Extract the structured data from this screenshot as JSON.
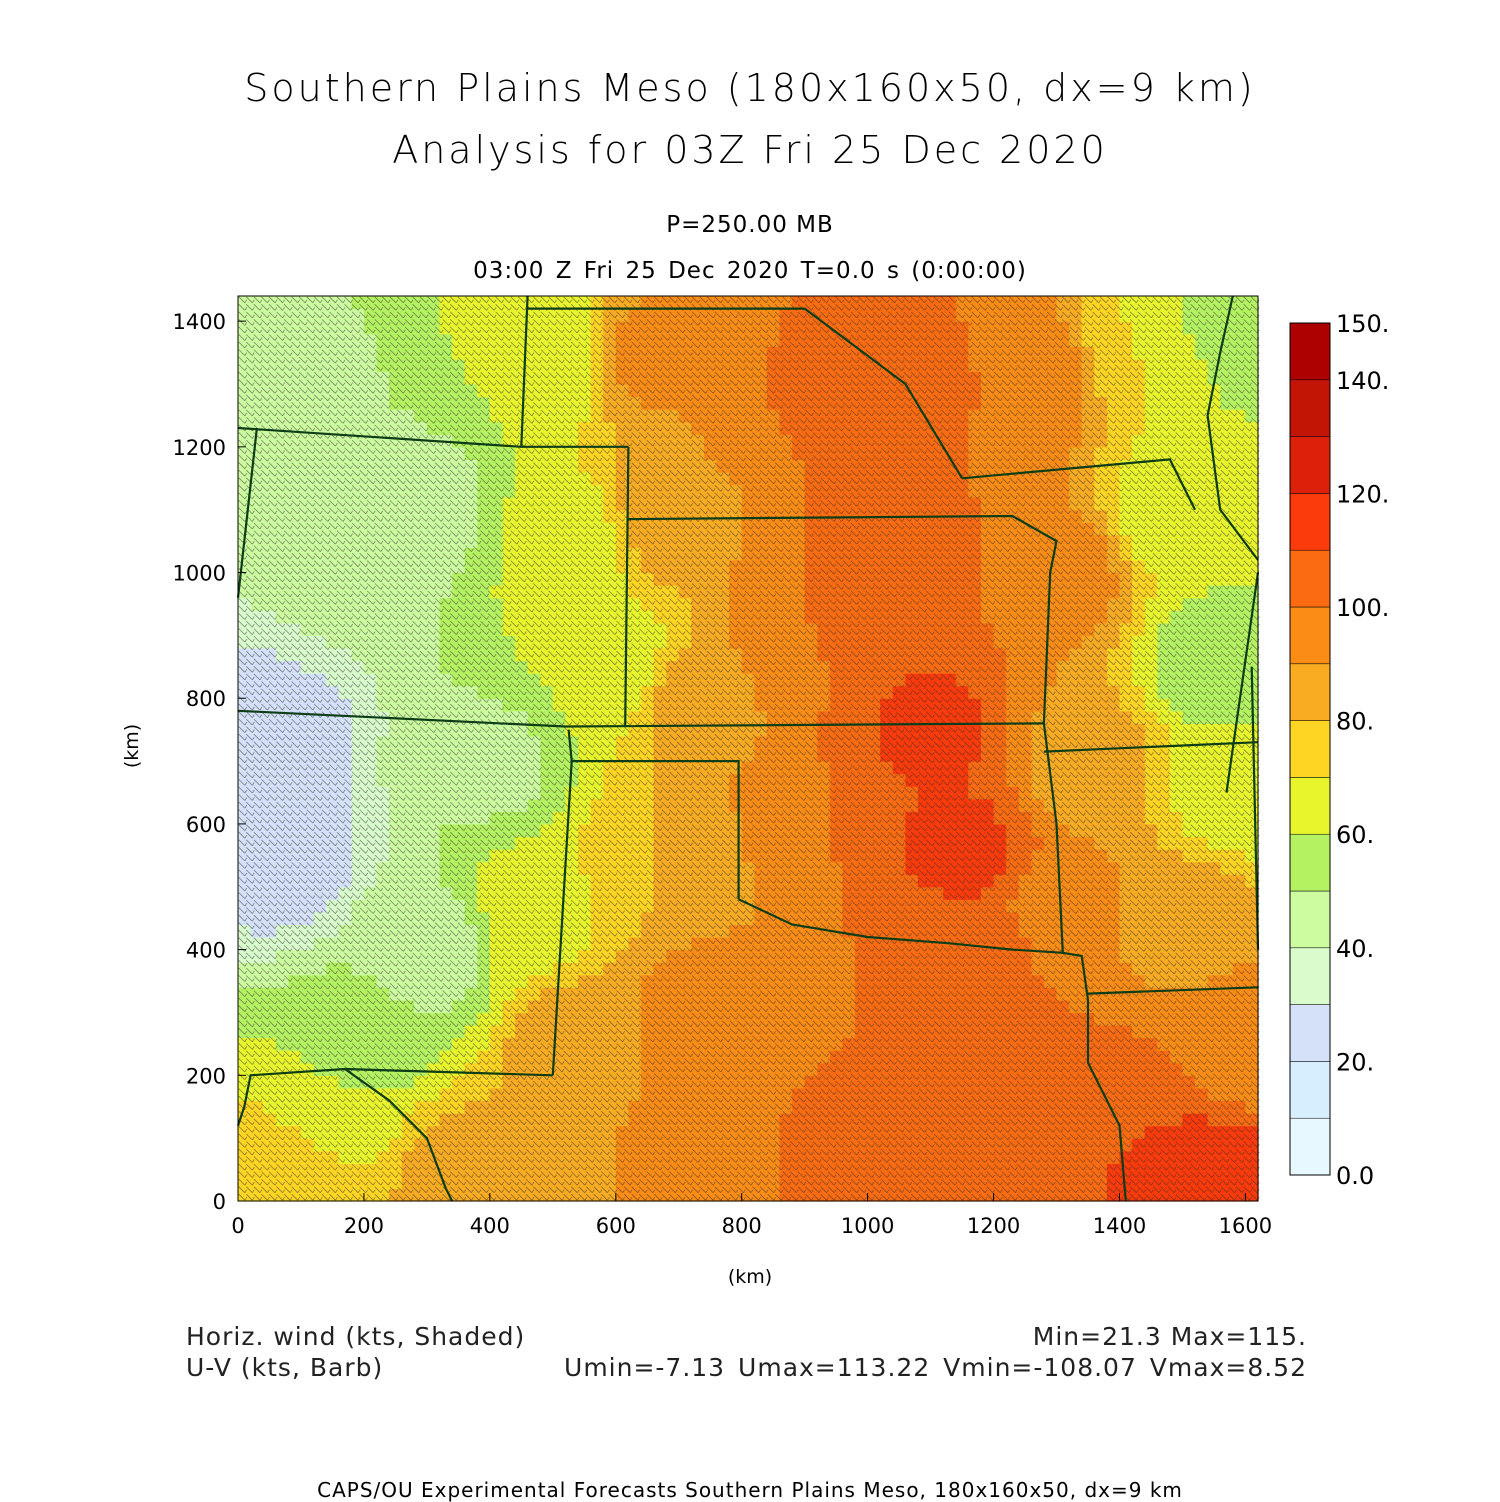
{
  "title_line1": "Southern Plains Meso (180x160x50, dx=9 km)",
  "title_line2": "Analysis for 03Z Fri 25 Dec 2020",
  "level": "P=250.00 MB",
  "time": "03:00 Z Fri 25 Dec 2020   T=0.0 s (0:00:00)",
  "legend": {
    "field1": "Horiz. wind (kts, Shaded)",
    "field2": "U-V (kts, Barb)",
    "stats1": "Min=21.3 Max=115.",
    "stats2": "Umin=-7.13 Umax=113.22 Vmin=-108.07 Vmax=8.52"
  },
  "footer": "CAPS/OU Experimental Forecasts  Southern Plains Meso, 180x160x50, dx=9 km",
  "chart_data": {
    "type": "heatmap",
    "xlabel": "(km)",
    "ylabel": "(km)",
    "xlim": [
      0,
      1620
    ],
    "ylim": [
      0,
      1440
    ],
    "x_ticks": [
      "0",
      "200",
      "400",
      "600",
      "800",
      "1000",
      "1200",
      "1400",
      "1600"
    ],
    "y_ticks": [
      "0",
      "200",
      "400",
      "600",
      "800",
      "1000",
      "1200",
      "1400"
    ],
    "colorbar": {
      "labels": [
        "0.0",
        "20.",
        "40.",
        "60.",
        "80.",
        "100.",
        "120.",
        "140.",
        "150."
      ],
      "levels": [
        0,
        10,
        20,
        30,
        40,
        50,
        60,
        70,
        80,
        90,
        100,
        110,
        120,
        130,
        140,
        150
      ],
      "colors": [
        "#e8f8ff",
        "#d7eeff",
        "#d4e1f9",
        "#d8fccc",
        "#cdfca0",
        "#b5f262",
        "#e8f52c",
        "#fdd522",
        "#f9ab22",
        "#fb8c16",
        "#fb6c12",
        "#fb3b0c",
        "#dc200a",
        "#c21506",
        "#ad0000"
      ]
    },
    "wind_speed_min": 21.3,
    "wind_speed_max": 115,
    "shading_anchors": [
      {
        "x": 50,
        "y": 750,
        "v": 25
      },
      {
        "x": 70,
        "y": 550,
        "v": 25
      },
      {
        "x": 80,
        "y": 1300,
        "v": 48
      },
      {
        "x": 150,
        "y": 1000,
        "v": 42
      },
      {
        "x": 300,
        "y": 1100,
        "v": 47
      },
      {
        "x": 400,
        "y": 700,
        "v": 48
      },
      {
        "x": 300,
        "y": 400,
        "v": 45
      },
      {
        "x": 200,
        "y": 250,
        "v": 55
      },
      {
        "x": 150,
        "y": 120,
        "v": 65
      },
      {
        "x": 100,
        "y": 40,
        "v": 80
      },
      {
        "x": 350,
        "y": 40,
        "v": 85
      },
      {
        "x": 500,
        "y": 1350,
        "v": 60
      },
      {
        "x": 520,
        "y": 1050,
        "v": 65
      },
      {
        "x": 600,
        "y": 850,
        "v": 62
      },
      {
        "x": 480,
        "y": 450,
        "v": 68
      },
      {
        "x": 550,
        "y": 250,
        "v": 88
      },
      {
        "x": 650,
        "y": 1350,
        "v": 92
      },
      {
        "x": 700,
        "y": 1100,
        "v": 88
      },
      {
        "x": 720,
        "y": 800,
        "v": 85
      },
      {
        "x": 700,
        "y": 550,
        "v": 80
      },
      {
        "x": 750,
        "y": 300,
        "v": 95
      },
      {
        "x": 800,
        "y": 100,
        "v": 100
      },
      {
        "x": 880,
        "y": 1250,
        "v": 100
      },
      {
        "x": 900,
        "y": 900,
        "v": 100
      },
      {
        "x": 900,
        "y": 600,
        "v": 100
      },
      {
        "x": 1000,
        "y": 1300,
        "v": 108
      },
      {
        "x": 1050,
        "y": 1000,
        "v": 110
      },
      {
        "x": 1100,
        "y": 750,
        "v": 112
      },
      {
        "x": 1150,
        "y": 550,
        "v": 113
      },
      {
        "x": 1200,
        "y": 400,
        "v": 103
      },
      {
        "x": 1050,
        "y": 400,
        "v": 100
      },
      {
        "x": 1000,
        "y": 100,
        "v": 102
      },
      {
        "x": 1200,
        "y": 200,
        "v": 105
      },
      {
        "x": 1400,
        "y": 100,
        "v": 110
      },
      {
        "x": 1550,
        "y": 30,
        "v": 115
      },
      {
        "x": 1250,
        "y": 1300,
        "v": 100
      },
      {
        "x": 1300,
        "y": 1000,
        "v": 95
      },
      {
        "x": 1350,
        "y": 700,
        "v": 85
      },
      {
        "x": 1300,
        "y": 450,
        "v": 95
      },
      {
        "x": 1450,
        "y": 1350,
        "v": 70
      },
      {
        "x": 1500,
        "y": 1100,
        "v": 62
      },
      {
        "x": 1550,
        "y": 850,
        "v": 55
      },
      {
        "x": 1580,
        "y": 650,
        "v": 65
      },
      {
        "x": 1500,
        "y": 450,
        "v": 85
      },
      {
        "x": 1580,
        "y": 1400,
        "v": 50
      },
      {
        "x": 1600,
        "y": 250,
        "v": 95
      }
    ],
    "boundaries": [
      [
        [
          0,
          1230
        ],
        [
          450,
          1200
        ],
        [
          620,
          1200
        ]
      ],
      [
        [
          30,
          1230
        ],
        [
          0,
          960
        ]
      ],
      [
        [
          0,
          780
        ],
        [
          520,
          755
        ],
        [
          1280,
          760
        ]
      ],
      [
        [
          460,
          1440
        ],
        [
          450,
          1200
        ]
      ],
      [
        [
          620,
          1200
        ],
        [
          615,
          755
        ]
      ],
      [
        [
          620,
          1085
        ],
        [
          1230,
          1090
        ],
        [
          1300,
          1050
        ],
        [
          1290,
          1000
        ],
        [
          1280,
          760
        ]
      ],
      [
        [
          1280,
          760
        ],
        [
          1300,
          600
        ],
        [
          1310,
          395
        ],
        [
          1340,
          390
        ],
        [
          1350,
          320
        ],
        [
          1350,
          220
        ],
        [
          1400,
          120
        ],
        [
          1410,
          0
        ]
      ],
      [
        [
          1350,
          330
        ],
        [
          1620,
          340
        ]
      ],
      [
        [
          1280,
          715
        ],
        [
          1620,
          730
        ]
      ],
      [
        [
          1610,
          850
        ],
        [
          1620,
          400
        ]
      ],
      [
        [
          1570,
          650
        ],
        [
          1620,
          1000
        ]
      ],
      [
        [
          1620,
          1020
        ],
        [
          1560,
          1100
        ],
        [
          1540,
          1250
        ],
        [
          1560,
          1350
        ],
        [
          1580,
          1440
        ]
      ],
      [
        [
          1150,
          1150
        ],
        [
          1480,
          1180
        ],
        [
          1520,
          1100
        ]
      ],
      [
        [
          900,
          1420
        ],
        [
          1060,
          1300
        ],
        [
          1150,
          1150
        ]
      ],
      [
        [
          460,
          1420
        ],
        [
          900,
          1420
        ]
      ],
      [
        [
          525,
          750
        ],
        [
          530,
          700
        ],
        [
          500,
          200
        ]
      ],
      [
        [
          530,
          700
        ],
        [
          795,
          700
        ],
        [
          795,
          480
        ]
      ],
      [
        [
          795,
          480
        ],
        [
          880,
          440
        ],
        [
          1000,
          420
        ],
        [
          1130,
          410
        ],
        [
          1230,
          400
        ],
        [
          1310,
          395
        ]
      ],
      [
        [
          500,
          200
        ],
        [
          170,
          210
        ],
        [
          20,
          200
        ],
        [
          10,
          150
        ],
        [
          0,
          120
        ]
      ],
      [
        [
          170,
          210
        ],
        [
          240,
          160
        ],
        [
          300,
          100
        ],
        [
          330,
          20
        ],
        [
          340,
          0
        ]
      ]
    ]
  }
}
